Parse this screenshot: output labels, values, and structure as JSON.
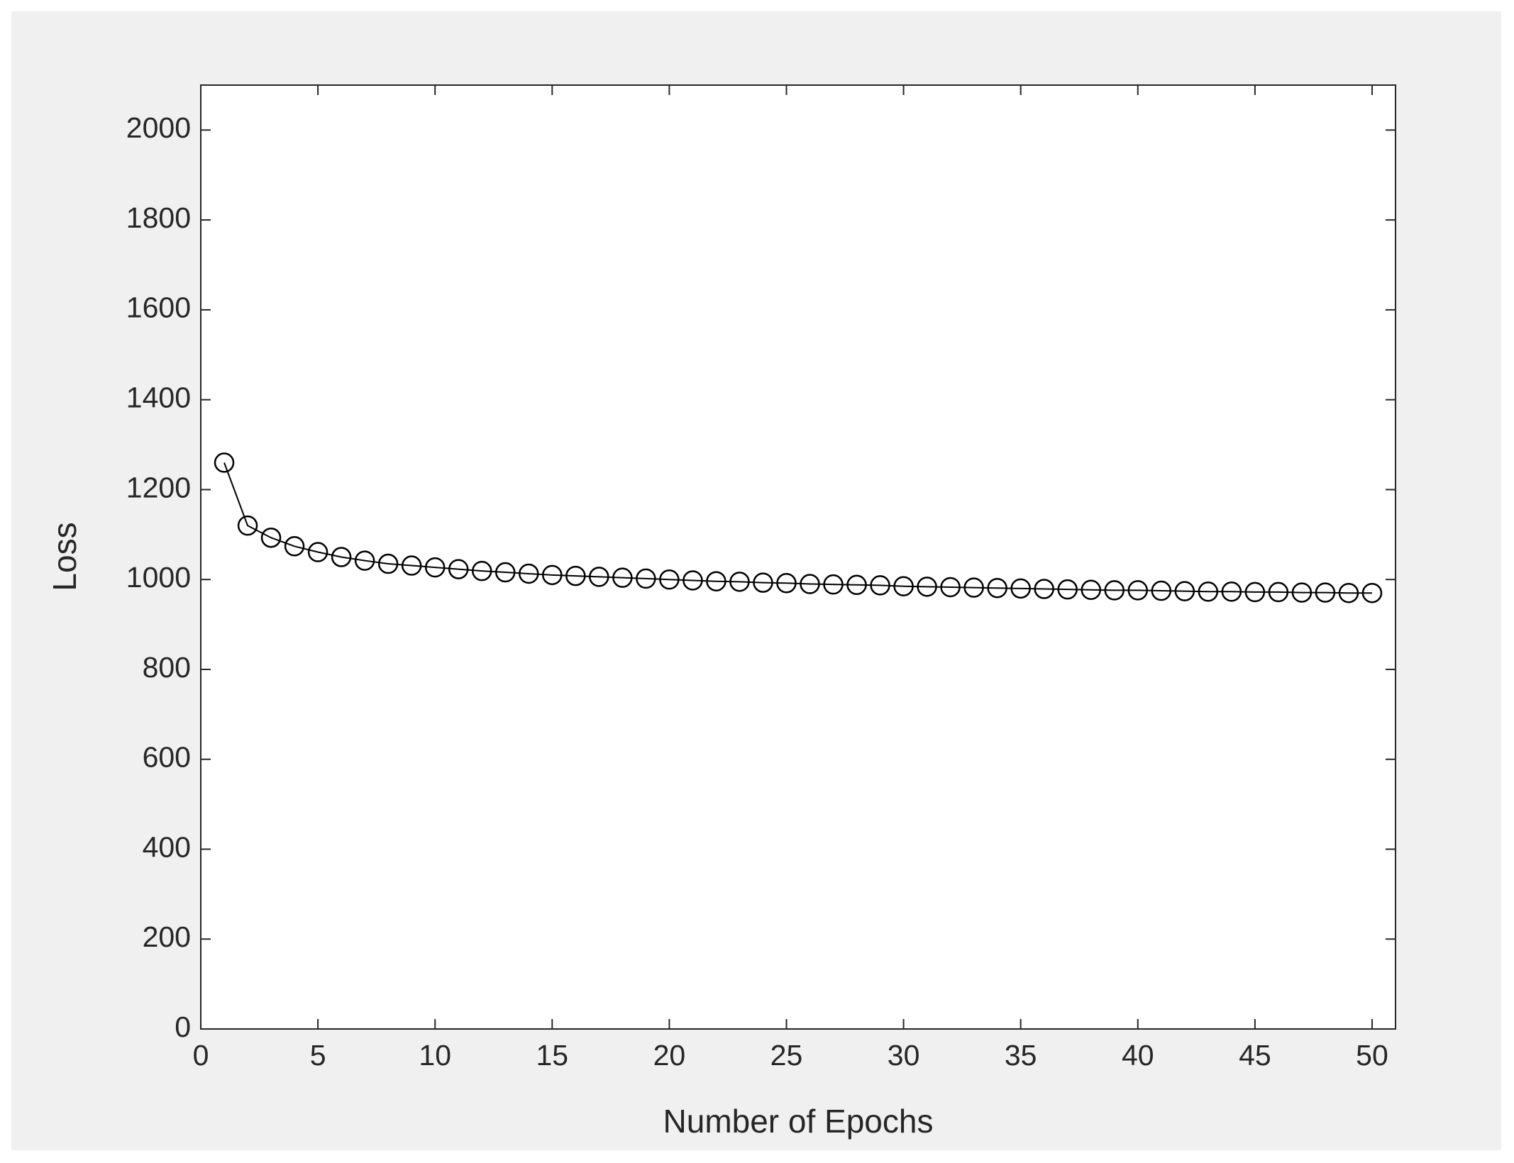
{
  "chart_data": {
    "type": "line",
    "xlabel": "Number of Epochs",
    "ylabel": "Loss",
    "x": [
      1,
      2,
      3,
      4,
      5,
      6,
      7,
      8,
      9,
      10,
      11,
      12,
      13,
      14,
      15,
      16,
      17,
      18,
      19,
      20,
      21,
      22,
      23,
      24,
      25,
      26,
      27,
      28,
      29,
      30,
      31,
      32,
      33,
      34,
      35,
      36,
      37,
      38,
      39,
      40,
      41,
      42,
      43,
      44,
      45,
      46,
      47,
      48,
      49,
      50
    ],
    "series": [
      {
        "name": "Loss",
        "color": "#000000",
        "marker": "o",
        "values": [
          1260,
          1120,
          1093,
          1074,
          1061,
          1050,
          1042,
          1035,
          1031,
          1027,
          1023,
          1019,
          1016,
          1013,
          1010,
          1008,
          1006,
          1004,
          1002,
          1000,
          998,
          996,
          995,
          993,
          992,
          990,
          989,
          988,
          987,
          985,
          984,
          983,
          982,
          981,
          980,
          979,
          978,
          977,
          976,
          976,
          975,
          974,
          973,
          973,
          972,
          972,
          971,
          971,
          970,
          970
        ]
      }
    ],
    "xlim": [
      0,
      51
    ],
    "xticks": [
      0,
      5,
      10,
      15,
      20,
      25,
      30,
      35,
      40,
      45,
      50
    ],
    "ylim": [
      0,
      2100
    ],
    "yticks": [
      0,
      200,
      400,
      600,
      800,
      1000,
      1200,
      1400,
      1600,
      1800,
      2000
    ],
    "grid": false
  }
}
